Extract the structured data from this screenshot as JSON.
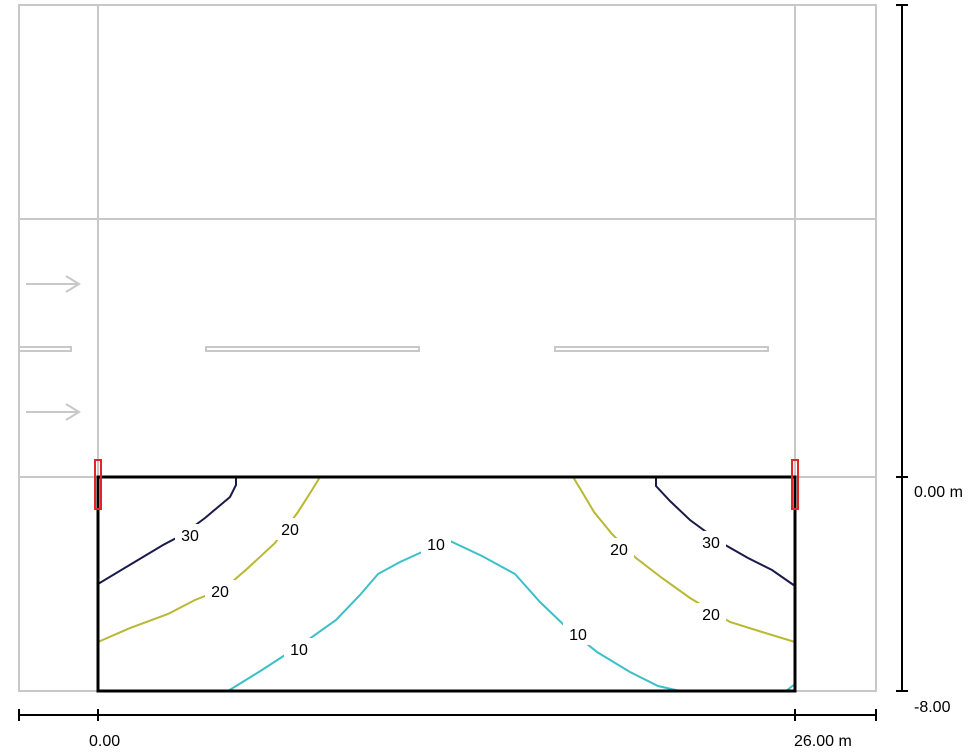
{
  "scale": {
    "horizontal": {
      "start_label": "0.00",
      "end_label": "26.00 m"
    },
    "vertical": {
      "top_label": "0.00 m",
      "bottom_label": "-8.00"
    }
  },
  "contours": [
    {
      "value": 30,
      "label": "30",
      "color": "#1a1a4a"
    },
    {
      "value": 20,
      "label": "20",
      "color": "#b8b832"
    },
    {
      "value": 10,
      "label": "10",
      "color": "#3cc0c8"
    }
  ],
  "colors": {
    "grid": "#c8c8c8",
    "field_outline": "#000000",
    "luminaire": "#e0262a",
    "axis": "#000000"
  }
}
